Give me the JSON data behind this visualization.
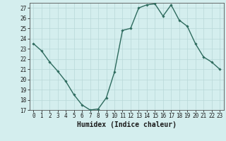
{
  "x": [
    0,
    1,
    2,
    3,
    4,
    5,
    6,
    7,
    8,
    9,
    10,
    11,
    12,
    13,
    14,
    15,
    16,
    17,
    18,
    19,
    20,
    21,
    22,
    23
  ],
  "y": [
    23.5,
    22.8,
    21.7,
    20.8,
    19.8,
    18.5,
    17.5,
    17.0,
    17.1,
    18.2,
    20.7,
    24.8,
    25.0,
    27.0,
    27.3,
    27.4,
    26.2,
    27.3,
    25.8,
    25.2,
    23.5,
    22.2,
    21.7,
    21.0
  ],
  "line_color": "#2e6b5e",
  "marker": "D",
  "marker_size": 1.8,
  "bg_color": "#d4eeee",
  "grid_color": "#b8d8d8",
  "xlabel": "Humidex (Indice chaleur)",
  "ylim": [
    17,
    27.5
  ],
  "xlim": [
    -0.5,
    23.5
  ],
  "yticks": [
    17,
    18,
    19,
    20,
    21,
    22,
    23,
    24,
    25,
    26,
    27
  ],
  "xticks": [
    0,
    1,
    2,
    3,
    4,
    5,
    6,
    7,
    8,
    9,
    10,
    11,
    12,
    13,
    14,
    15,
    16,
    17,
    18,
    19,
    20,
    21,
    22,
    23
  ],
  "tick_fontsize": 5.5,
  "xlabel_fontsize": 7,
  "line_width": 1.0
}
